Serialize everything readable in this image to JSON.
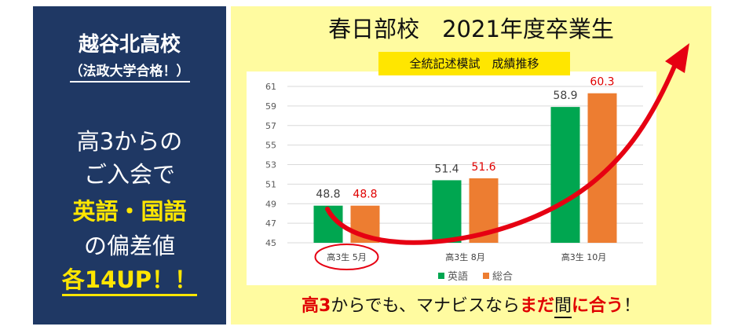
{
  "left": {
    "school": "越谷北高校",
    "school_note": "（法政大学合格！）",
    "line1": "高3からの",
    "line2": "ご入会で",
    "line3": "英語・国語",
    "line4": "の偏差値",
    "line5": "各14UP！！"
  },
  "right": {
    "title": "春日部校　2021年度卒業生",
    "subtitle": "全統記述模試　成績推移",
    "bottom_part1": "高3",
    "bottom_part2": "からでも、マナビスなら",
    "bottom_part3": "まだ",
    "bottom_part4": "間",
    "bottom_part5": "に",
    "bottom_part6": "合う",
    "bottom_part7": "！"
  },
  "colors": {
    "english": "#00a650",
    "total": "#ed7d31",
    "value_red": "#e00000",
    "arrow": "#e60012",
    "left_bg": "#1f3864",
    "right_bg": "#fffba0",
    "highlight": "#ffe600"
  },
  "chart_data": {
    "type": "bar",
    "categories": [
      "高3生 5月",
      "高3生 8月",
      "高3生 10月"
    ],
    "series": [
      {
        "name": "英語",
        "values": [
          48.8,
          51.4,
          58.9
        ]
      },
      {
        "name": "総合",
        "values": [
          48.8,
          51.6,
          60.3
        ]
      }
    ],
    "ylim": [
      45,
      61
    ],
    "yticks": [
      45,
      47,
      49,
      51,
      53,
      55,
      57,
      59,
      61
    ],
    "grid": true,
    "legend_position": "bottom",
    "annotations": [
      "circled first category label",
      "red upward curved arrow"
    ]
  }
}
